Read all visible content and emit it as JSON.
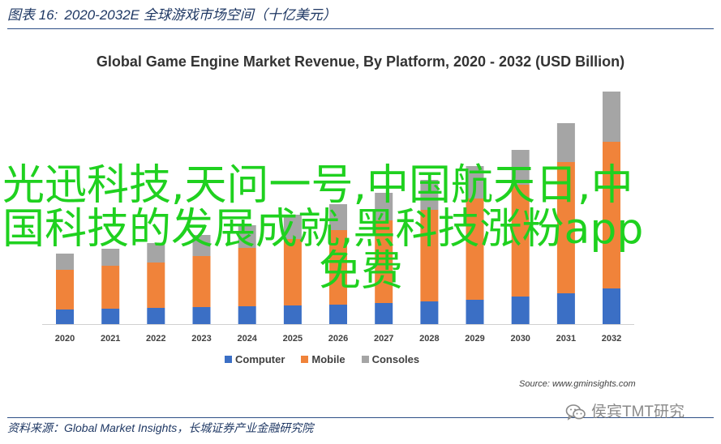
{
  "figure": {
    "label": "图表 16:",
    "title": "2020-2032E 全球游戏市场空间（十亿美元）"
  },
  "chart_data": {
    "type": "bar",
    "stacked": true,
    "title": "Global Game Engine Market Revenue, By Platform, 2020 - 2032 (USD Billion)",
    "categories": [
      "2020",
      "2021",
      "2022",
      "2023",
      "2024",
      "2025",
      "2026",
      "2027",
      "2028",
      "2029",
      "2030",
      "2031",
      "2032"
    ],
    "series": [
      {
        "name": "Computer",
        "color": "#3b6fc5",
        "values": [
          0.9,
          0.95,
          1.0,
          1.05,
          1.1,
          1.15,
          1.2,
          1.3,
          1.4,
          1.5,
          1.7,
          1.9,
          2.2
        ]
      },
      {
        "name": "Mobile",
        "color": "#f0833a",
        "values": [
          2.45,
          2.65,
          2.8,
          3.15,
          3.6,
          4.1,
          4.6,
          5.1,
          5.65,
          6.25,
          6.9,
          8.1,
          9.05
        ]
      },
      {
        "name": "Consoles",
        "color": "#a5a5a5",
        "values": [
          1.0,
          1.05,
          1.2,
          1.3,
          1.4,
          1.5,
          1.6,
          1.7,
          1.85,
          2.0,
          2.15,
          2.4,
          3.1
        ]
      }
    ],
    "ylim": [
      0,
      15
    ],
    "grid": false,
    "legend": "bottom",
    "source": "Source: www.gminsights.com"
  },
  "overlay": {
    "lines": [
      "光迅科技,天问一号,中国航天日,中",
      "国科技的发展成就,黑科技涨粉app",
      "免费"
    ],
    "color": "#1fd11f"
  },
  "footer": {
    "source": "资料来源：Global Market Insights，长城证券产业金融研究院"
  },
  "watermark": {
    "icon": "wechat-icon",
    "text": "侯宾TMT研究"
  }
}
